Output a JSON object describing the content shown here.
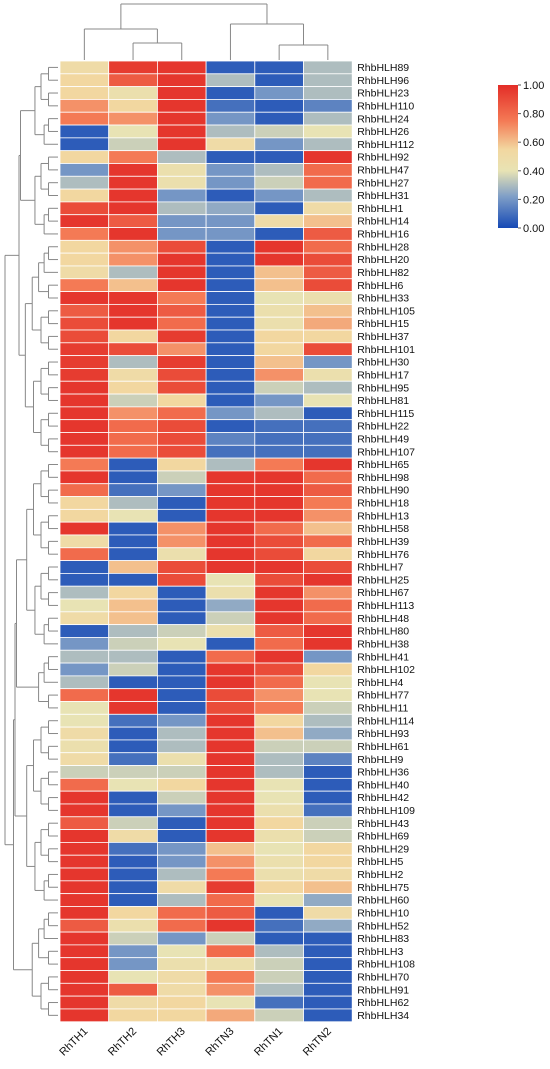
{
  "chart_data": {
    "type": "heatmap",
    "title": "",
    "xlabel": "",
    "ylabel": "",
    "columns": [
      "RhTH1",
      "RhTH2",
      "RhTH3",
      "RhTN3",
      "RhTN1",
      "RhTN2"
    ],
    "rows": [
      "RhbHLH89",
      "RhbHLH96",
      "RhbHLH23",
      "RhbHLH110",
      "RhbHLH24",
      "RhbHLH26",
      "RhbHLH112",
      "RhbHLH92",
      "RhbHLH47",
      "RhbHLH27",
      "RhbHLH31",
      "RhbHLH1",
      "RhbHLH14",
      "RhbHLH16",
      "RhbHLH28",
      "RhbHLH20",
      "RhbHLH82",
      "RhbHLH6",
      "RhbHLH33",
      "RhbHLH105",
      "RhbHLH15",
      "RhbHLH37",
      "RhbHLH101",
      "RhbHLH30",
      "RhbHLH17",
      "RhbHLH95",
      "RhbHLH81",
      "RhbHLH115",
      "RhbHLH22",
      "RhbHLH49",
      "RhbHLH107",
      "RhbHLH65",
      "RhbHLH98",
      "RhbHLH90",
      "RhbHLH18",
      "RhbHLH13",
      "RhbHLH58",
      "RhbHLH39",
      "RhbHLH76",
      "RhbHLH7",
      "RhbHLH25",
      "RhbHLH67",
      "RhbHLH113",
      "RhbHLH48",
      "RhbHLH80",
      "RhbHLH38",
      "RhbHLH41",
      "RhbHLH102",
      "RhbHLH4",
      "RhbHLH77",
      "RhbHLH11",
      "RhbHLH114",
      "RhbHLH93",
      "RhbHLH61",
      "RhbHLH9",
      "RhbHLH36",
      "RhbHLH40",
      "RhbHLH42",
      "RhbHLH109",
      "RhbHLH43",
      "RhbHLH69",
      "RhbHLH29",
      "RhbHLH5",
      "RhbHLH2",
      "RhbHLH75",
      "RhbHLH60",
      "RhbHLH10",
      "RhbHLH52",
      "RhbHLH83",
      "RhbHLH3",
      "RhbHLH108",
      "RhbHLH70",
      "RhbHLH91",
      "RhbHLH62",
      "RhbHLH34"
    ],
    "values": [
      [
        0.5,
        0.95,
        0.97,
        0.05,
        0.05,
        0.3
      ],
      [
        0.55,
        0.85,
        0.97,
        0.3,
        0.05,
        0.3
      ],
      [
        0.55,
        0.45,
        0.97,
        0.05,
        0.2,
        0.3
      ],
      [
        0.7,
        0.55,
        0.97,
        0.1,
        0.05,
        0.15
      ],
      [
        0.75,
        0.7,
        0.97,
        0.2,
        0.05,
        0.3
      ],
      [
        0.05,
        0.4,
        0.97,
        0.3,
        0.35,
        0.4
      ],
      [
        0.05,
        0.35,
        0.97,
        0.5,
        0.2,
        0.3
      ],
      [
        0.55,
        0.75,
        0.3,
        0.05,
        0.05,
        0.97
      ],
      [
        0.2,
        0.97,
        0.45,
        0.2,
        0.3,
        0.8
      ],
      [
        0.3,
        0.97,
        0.45,
        0.2,
        0.35,
        0.8
      ],
      [
        0.55,
        0.97,
        0.2,
        0.05,
        0.2,
        0.3
      ],
      [
        0.9,
        0.97,
        0.3,
        0.25,
        0.05,
        0.5
      ],
      [
        0.97,
        0.85,
        0.2,
        0.2,
        0.5,
        0.6
      ],
      [
        0.75,
        0.97,
        0.2,
        0.2,
        0.05,
        0.85
      ],
      [
        0.55,
        0.7,
        0.9,
        0.05,
        0.97,
        0.8
      ],
      [
        0.55,
        0.7,
        0.97,
        0.05,
        0.97,
        0.9
      ],
      [
        0.5,
        0.3,
        0.97,
        0.05,
        0.6,
        0.85
      ],
      [
        0.75,
        0.6,
        0.97,
        0.05,
        0.6,
        0.9
      ],
      [
        0.97,
        0.97,
        0.75,
        0.05,
        0.4,
        0.45
      ],
      [
        0.85,
        0.97,
        0.85,
        0.05,
        0.45,
        0.6
      ],
      [
        0.9,
        0.97,
        0.8,
        0.05,
        0.45,
        0.65
      ],
      [
        0.9,
        0.55,
        0.95,
        0.05,
        0.55,
        0.55
      ],
      [
        0.95,
        0.9,
        0.7,
        0.05,
        0.55,
        0.9
      ],
      [
        0.95,
        0.3,
        0.95,
        0.05,
        0.6,
        0.2
      ],
      [
        0.95,
        0.5,
        0.9,
        0.05,
        0.7,
        0.45
      ],
      [
        0.97,
        0.55,
        0.9,
        0.05,
        0.35,
        0.3
      ],
      [
        0.97,
        0.35,
        0.55,
        0.05,
        0.2,
        0.4
      ],
      [
        0.97,
        0.7,
        0.8,
        0.2,
        0.3,
        0.05
      ],
      [
        0.97,
        0.8,
        0.9,
        0.05,
        0.1,
        0.1
      ],
      [
        0.97,
        0.8,
        0.9,
        0.15,
        0.1,
        0.1
      ],
      [
        0.97,
        0.8,
        0.9,
        0.1,
        0.1,
        0.1
      ],
      [
        0.75,
        0.05,
        0.55,
        0.3,
        0.75,
        0.97
      ],
      [
        0.97,
        0.05,
        0.35,
        0.97,
        0.97,
        0.8
      ],
      [
        0.8,
        0.1,
        0.2,
        0.97,
        0.97,
        0.85
      ],
      [
        0.55,
        0.3,
        0.05,
        0.97,
        0.97,
        0.75
      ],
      [
        0.55,
        0.4,
        0.05,
        0.97,
        0.97,
        0.7
      ],
      [
        0.97,
        0.05,
        0.7,
        0.97,
        0.8,
        0.6
      ],
      [
        0.5,
        0.05,
        0.7,
        0.97,
        0.9,
        0.8
      ],
      [
        0.8,
        0.05,
        0.45,
        0.97,
        0.9,
        0.55
      ],
      [
        0.05,
        0.6,
        0.9,
        0.97,
        0.97,
        0.9
      ],
      [
        0.05,
        0.05,
        0.9,
        0.4,
        0.9,
        0.97
      ],
      [
        0.3,
        0.55,
        0.05,
        0.45,
        0.97,
        0.7
      ],
      [
        0.4,
        0.6,
        0.05,
        0.25,
        0.97,
        0.8
      ],
      [
        0.5,
        0.6,
        0.05,
        0.35,
        0.97,
        0.8
      ],
      [
        0.05,
        0.3,
        0.35,
        0.45,
        0.85,
        0.97
      ],
      [
        0.2,
        0.35,
        0.4,
        0.05,
        0.8,
        0.97
      ],
      [
        0.3,
        0.3,
        0.05,
        0.8,
        0.97,
        0.2
      ],
      [
        0.2,
        0.35,
        0.05,
        0.97,
        0.9,
        0.55
      ],
      [
        0.3,
        0.05,
        0.05,
        0.97,
        0.8,
        0.4
      ],
      [
        0.8,
        0.97,
        0.05,
        0.9,
        0.7,
        0.4
      ],
      [
        0.4,
        0.97,
        0.05,
        0.9,
        0.75,
        0.35
      ],
      [
        0.4,
        0.1,
        0.2,
        0.97,
        0.55,
        0.3
      ],
      [
        0.5,
        0.05,
        0.3,
        0.97,
        0.6,
        0.25
      ],
      [
        0.45,
        0.05,
        0.3,
        0.97,
        0.35,
        0.35
      ],
      [
        0.5,
        0.1,
        0.45,
        0.97,
        0.3,
        0.15
      ],
      [
        0.35,
        0.35,
        0.35,
        0.97,
        0.3,
        0.05
      ],
      [
        0.8,
        0.4,
        0.55,
        0.97,
        0.4,
        0.05
      ],
      [
        0.97,
        0.05,
        0.35,
        0.97,
        0.4,
        0.05
      ],
      [
        0.97,
        0.05,
        0.2,
        0.97,
        0.45,
        0.1
      ],
      [
        0.85,
        0.35,
        0.05,
        0.97,
        0.55,
        0.35
      ],
      [
        0.97,
        0.5,
        0.05,
        0.97,
        0.45,
        0.35
      ],
      [
        0.97,
        0.1,
        0.2,
        0.6,
        0.4,
        0.55
      ],
      [
        0.97,
        0.05,
        0.2,
        0.7,
        0.45,
        0.55
      ],
      [
        0.97,
        0.05,
        0.3,
        0.75,
        0.45,
        0.5
      ],
      [
        0.97,
        0.05,
        0.5,
        0.95,
        0.55,
        0.6
      ],
      [
        0.97,
        0.05,
        0.3,
        0.8,
        0.4,
        0.25
      ],
      [
        0.97,
        0.55,
        0.8,
        0.85,
        0.05,
        0.5
      ],
      [
        0.85,
        0.45,
        0.8,
        0.97,
        0.1,
        0.25
      ],
      [
        0.97,
        0.35,
        0.2,
        0.35,
        0.05,
        0.05
      ],
      [
        0.97,
        0.2,
        0.4,
        0.8,
        0.3,
        0.05
      ],
      [
        0.97,
        0.2,
        0.45,
        0.45,
        0.35,
        0.05
      ],
      [
        0.97,
        0.4,
        0.5,
        0.75,
        0.35,
        0.05
      ],
      [
        0.97,
        0.85,
        0.5,
        0.7,
        0.3,
        0.05
      ],
      [
        0.97,
        0.5,
        0.55,
        0.4,
        0.1,
        0.05
      ],
      [
        0.97,
        0.55,
        0.55,
        0.65,
        0.35,
        0.05
      ]
    ],
    "colorbar": {
      "min": 0,
      "max": 1,
      "ticks": [
        "1.00",
        "0.80",
        "0.60",
        "0.40",
        "0.20",
        "0.00"
      ],
      "colors": [
        "#d7191c",
        "#f46d43",
        "#fdae61",
        "#eee8aa",
        "#a6bddb",
        "#4575b4",
        "#1a50b0"
      ],
      "placement": "top-right"
    },
    "grid": false,
    "row_dendrogram": true,
    "column_dendrogram": true
  }
}
